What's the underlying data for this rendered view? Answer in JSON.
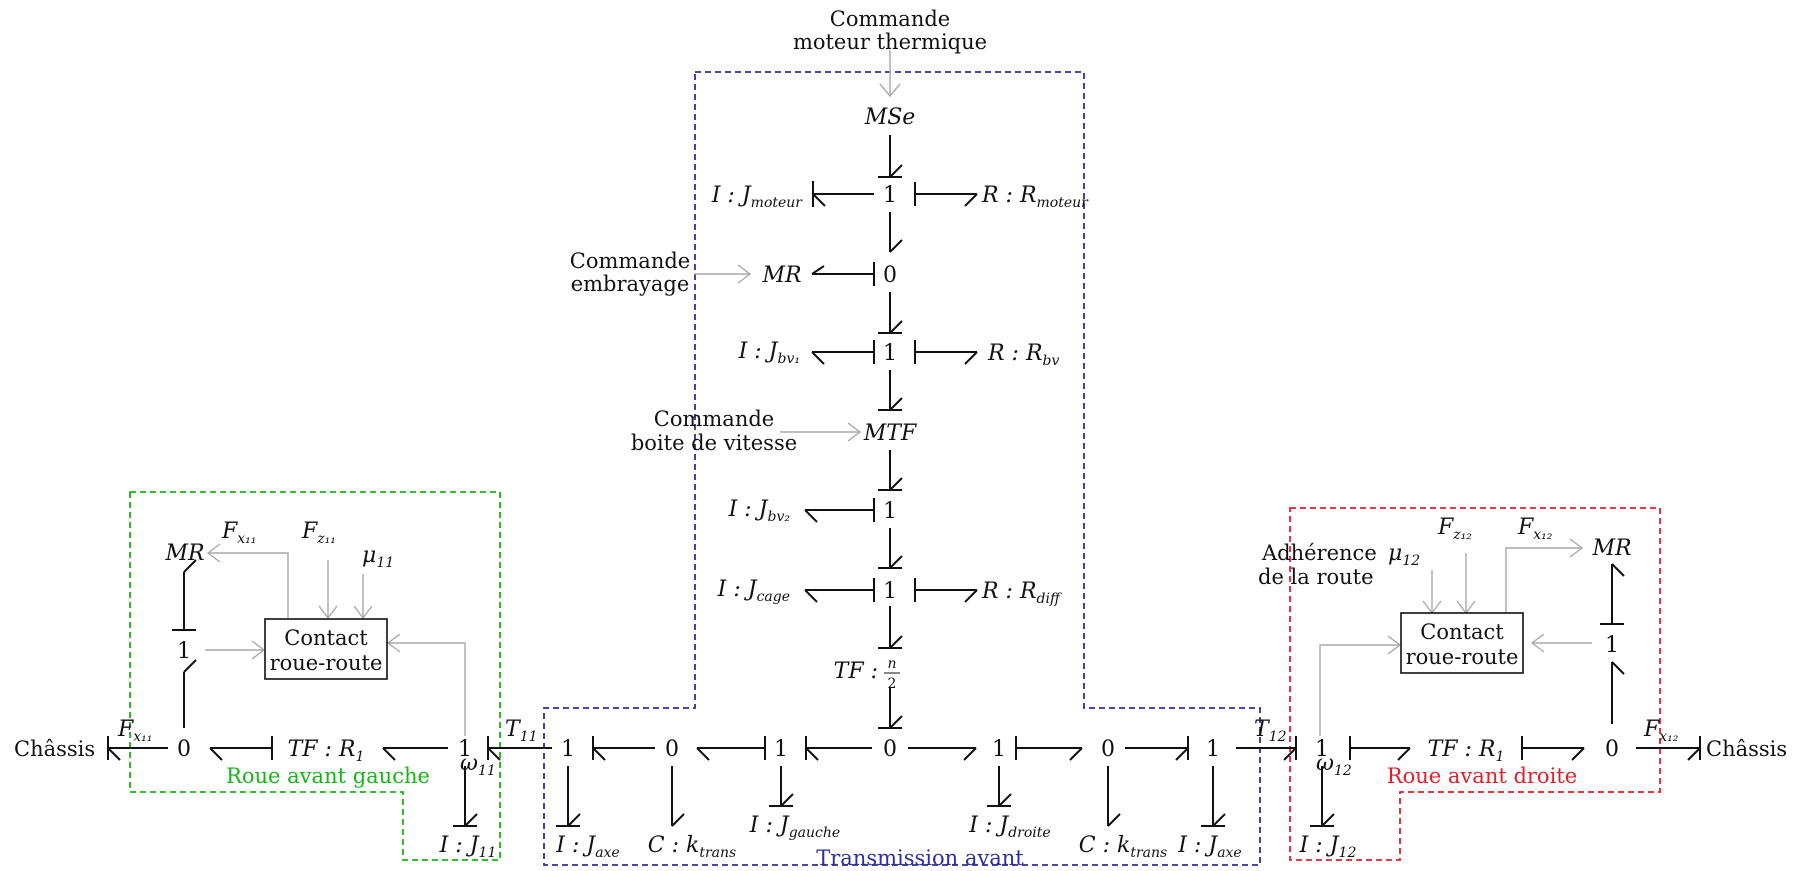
{
  "commands": {
    "motor_line1": "Commande",
    "motor_line2": "moteur thermique",
    "clutch_line1": "Commande",
    "clutch_line2": "embrayage",
    "gearbox_line1": "Commande",
    "gearbox_line2": "boite de vitesse"
  },
  "spine": {
    "mse": "MSe",
    "one_a": "1",
    "j_moteur": "I : J",
    "j_moteur_sub": "moteur",
    "r_moteur": "R : R",
    "r_moteur_sub": "moteur",
    "mr": "MR",
    "zero_a": "0",
    "one_b": "1",
    "j_bv1": "I : J",
    "j_bv1_sub": "bv₁",
    "r_bv": "R : R",
    "r_bv_sub": "bv",
    "mtf": "MTF",
    "one_c": "1",
    "j_bv2": "I : J",
    "j_bv2_sub": "bv₂",
    "one_d": "1",
    "j_cage": "I : J",
    "j_cage_sub": "cage",
    "r_diff": "R : R",
    "r_diff_sub": "diff",
    "tf": "TF :",
    "tf_num": "n",
    "tf_den": "2",
    "zero_center": "0"
  },
  "bottom_row": {
    "chassis_left": "Châssis",
    "chassis_right": "Châssis",
    "zero_l": "0",
    "tf_l": "TF : R",
    "tf_l_sub": "1",
    "one_l": "1",
    "t11": "T",
    "t11_sub": "11",
    "w11": "ω",
    "w11_sub": "11",
    "j11": "I : J",
    "j11_sub": "11",
    "one_axe_l": "1",
    "j_axe_l": "I : J",
    "j_axe_l_sub": "axe",
    "zero_trans_l": "0",
    "c_trans_l": "C : k",
    "c_trans_l_sub": "trans",
    "one_gauche": "1",
    "j_gauche": "I : J",
    "j_gauche_sub": "gauche",
    "one_droite": "1",
    "j_droite": "I : J",
    "j_droite_sub": "droite",
    "zero_trans_r": "0",
    "c_trans_r": "C : k",
    "c_trans_r_sub": "trans",
    "one_axe_r": "1",
    "j_axe_r": "I : J",
    "j_axe_r_sub": "axe",
    "t12": "T",
    "t12_sub": "12",
    "one_r": "1",
    "w12": "ω",
    "w12_sub": "12",
    "j12": "I : J",
    "j12_sub": "12",
    "tf_r": "TF : R",
    "tf_r_sub": "1",
    "zero_r": "0"
  },
  "wheel_left": {
    "mr": "MR",
    "fx": "F",
    "fx_sub": "x₁₁",
    "fz": "F",
    "fz_sub": "z₁₁",
    "mu": "μ",
    "mu_sub": "11",
    "one": "1",
    "contact_line1": "Contact",
    "contact_line2": "roue-route",
    "fx_bottom": "F",
    "fx_bottom_sub": "x₁₁"
  },
  "wheel_right": {
    "mr": "MR",
    "fx": "F",
    "fx_sub": "x₁₂",
    "fz": "F",
    "fz_sub": "z₁₂",
    "mu": "μ",
    "mu_sub": "12",
    "one": "1",
    "adherence_line1": "Adhérence",
    "adherence_line2": "de la route",
    "contact_line1": "Contact",
    "contact_line2": "roue-route",
    "fx_bottom": "F",
    "fx_bottom_sub": "x₁₂"
  },
  "groups": {
    "left": "Roue avant gauche",
    "center": "Transmission avant",
    "right": "Roue avant droite"
  },
  "colors": {
    "left_group": "#17b517",
    "center_group": "#2e2e9e",
    "right_group": "#e0202a",
    "signal": "#a9a9a9"
  }
}
